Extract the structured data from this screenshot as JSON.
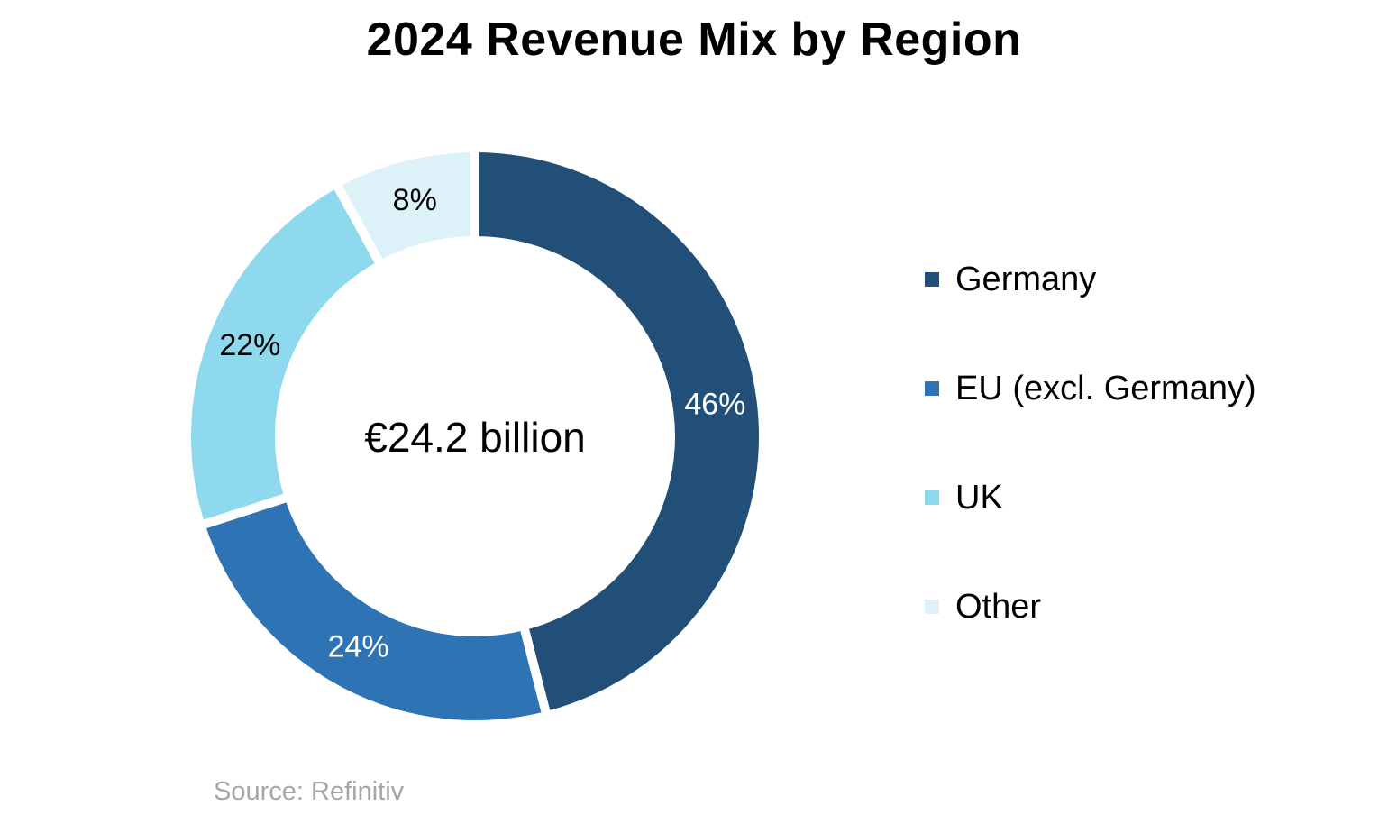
{
  "chart_data": {
    "type": "pie",
    "variant": "donut",
    "title": "2024 Revenue Mix by Region",
    "center_label": "€24.2 billion",
    "categories": [
      "Germany",
      "EU (excl. Germany)",
      "UK",
      "Other"
    ],
    "values": [
      46,
      24,
      22,
      8
    ],
    "labels": [
      "46%",
      "24%",
      "22%",
      "8%"
    ],
    "colors": [
      "#214f78",
      "#2e74b5",
      "#8fd9ee",
      "#dcf1f8"
    ],
    "label_colors": [
      "#ffffff",
      "#ffffff",
      "#000000",
      "#000000"
    ],
    "legend_position": "right",
    "source": "Source: Refinitiv"
  }
}
